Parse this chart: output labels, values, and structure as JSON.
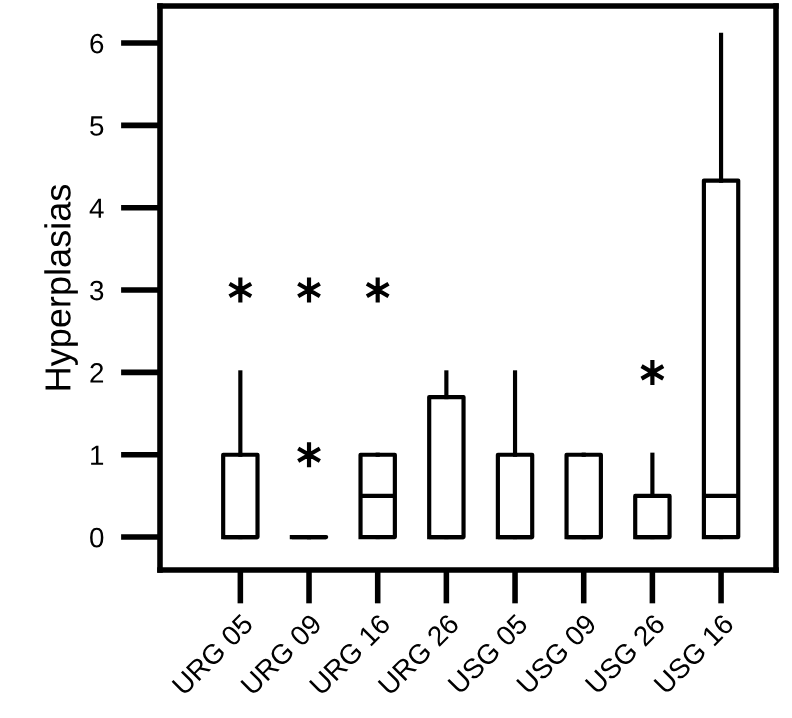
{
  "chart_data": {
    "type": "box",
    "ylabel": "Hyperplasias",
    "categories": [
      "URG 05",
      "URG 09",
      "URG 16",
      "URG 26",
      "USG 05",
      "USG 09",
      "USG 26",
      "USG 16"
    ],
    "boxes": [
      {
        "low": 0,
        "q1": 0,
        "median": 0,
        "q3": 1,
        "high": 2,
        "outliers": [
          3
        ]
      },
      {
        "low": 0,
        "q1": 0,
        "median": 0,
        "q3": 0,
        "high": 0,
        "outliers": [
          1,
          3
        ]
      },
      {
        "low": 0,
        "q1": 0,
        "median": 0.5,
        "q3": 1,
        "high": 1,
        "outliers": [
          3
        ]
      },
      {
        "low": 0,
        "q1": 0,
        "median": 0,
        "q3": 1.7,
        "high": 2
      },
      {
        "low": 0,
        "q1": 0,
        "median": 0,
        "q3": 1,
        "high": 2
      },
      {
        "low": 0,
        "q1": 0,
        "median": 0,
        "q3": 1,
        "high": 1
      },
      {
        "low": 0,
        "q1": 0,
        "median": 0,
        "q3": 0.5,
        "high": 1,
        "outliers": [
          2
        ]
      },
      {
        "low": 0,
        "q1": 0,
        "median": 0.5,
        "q3": 4.33,
        "high": 6.1
      }
    ],
    "color": "#000000",
    "marker": "star",
    "ylim": [
      -0.4,
      6.45
    ],
    "yticks": [
      0,
      1,
      2,
      3,
      4,
      5,
      6
    ],
    "grid": false
  }
}
